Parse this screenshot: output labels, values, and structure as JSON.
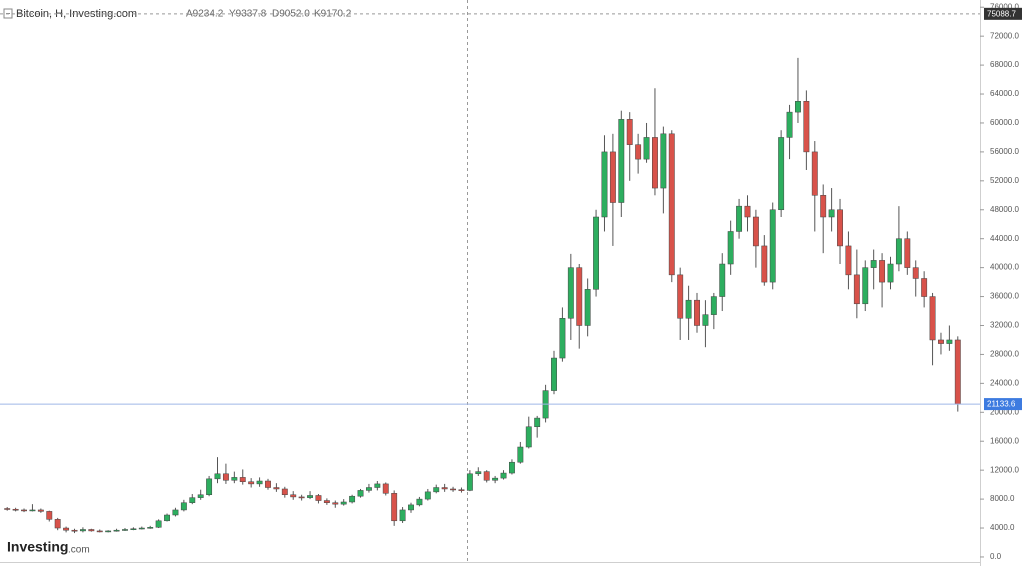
{
  "chart_data": {
    "type": "candlestick",
    "title": "Bitcoin, H, Investing.com",
    "ohlc_readout": [
      "A9234.2",
      "Y9337.8",
      "D9052.0",
      "K9170.2"
    ],
    "logo": {
      "name": "Investing",
      "suffix": ".com"
    },
    "up_color": "#2dae5f",
    "down_color": "#d8524a",
    "crosshair_price": 75088.7,
    "ylim": [
      -1250,
      77000
    ],
    "yticks": [
      {
        "value": 0,
        "label": "0.0"
      },
      {
        "value": 4000,
        "label": "4000.0"
      },
      {
        "value": 8000,
        "label": "8000.0"
      },
      {
        "value": 12000,
        "label": "12000.0"
      },
      {
        "value": 16000,
        "label": "16000.0"
      },
      {
        "value": 20000,
        "label": "20000.0"
      },
      {
        "value": 24000,
        "label": "24000.0"
      },
      {
        "value": 28000,
        "label": "28000.0"
      },
      {
        "value": 32000,
        "label": "32000.0"
      },
      {
        "value": 36000,
        "label": "36000.0"
      },
      {
        "value": 40000,
        "label": "40000.0"
      },
      {
        "value": 44000,
        "label": "44000.0"
      },
      {
        "value": 48000,
        "label": "48000.0"
      },
      {
        "value": 52000,
        "label": "52000.0"
      },
      {
        "value": 56000,
        "label": "56000.0"
      },
      {
        "value": 60000,
        "label": "60000.0"
      },
      {
        "value": 64000,
        "label": "64000.0"
      },
      {
        "value": 68000,
        "label": "68000.0"
      },
      {
        "value": 72000,
        "label": "72000.0"
      },
      {
        "value": 76000,
        "label": "76000.0"
      }
    ],
    "open": [
      6700,
      6600,
      6500,
      6400,
      6500,
      6300,
      5200,
      4000,
      3700,
      3600,
      3800,
      3600,
      3500,
      3600,
      3700,
      3800,
      3900,
      4000,
      4100,
      5000,
      5800,
      6500,
      7500,
      8200,
      8600,
      10800,
      11500,
      10600,
      11000,
      10400,
      10100,
      10500,
      9600,
      9400,
      8600,
      8300,
      8200,
      8500,
      7800,
      7500,
      7300,
      7600,
      8400,
      9200,
      9600,
      10100,
      8800,
      5000,
      6500,
      7200,
      8000,
      9000,
      9600,
      9400,
      9300,
      9200,
      11500,
      11800,
      10600,
      10900,
      11600,
      13100,
      15200,
      18000,
      19200,
      23000,
      27500,
      33000,
      40000,
      32000,
      37000,
      47000,
      56000,
      49000,
      60500,
      57000,
      55000,
      58000,
      51000,
      58500,
      39000,
      33000,
      35500,
      32000,
      33500,
      36000,
      40500,
      45000,
      48500,
      47000,
      43000,
      38000,
      48000,
      58000,
      61500,
      63000,
      56000,
      50000,
      47000,
      48000,
      43000,
      39000,
      35000,
      40000,
      41000,
      38000,
      40500,
      44000,
      40000,
      38500,
      36000,
      30000,
      29500,
      30000
    ],
    "high": [
      6900,
      6800,
      6700,
      7300,
      6700,
      6400,
      5400,
      4200,
      3900,
      4100,
      3900,
      3800,
      3700,
      3900,
      4000,
      4100,
      4200,
      4300,
      5200,
      6000,
      6800,
      7900,
      8700,
      9300,
      11200,
      13800,
      12900,
      11800,
      12100,
      10900,
      11000,
      10800,
      10200,
      9700,
      9100,
      8600,
      9100,
      8700,
      8100,
      7800,
      8000,
      8600,
      9400,
      10100,
      10500,
      10300,
      9200,
      6900,
      7500,
      8300,
      9400,
      10000,
      10100,
      9700,
      9600,
      12000,
      12400,
      12000,
      11200,
      12000,
      13500,
      15900,
      19400,
      19500,
      23800,
      28500,
      34500,
      41900,
      40500,
      38500,
      48000,
      58300,
      58500,
      61700,
      61500,
      58500,
      60000,
      64800,
      59500,
      59000,
      40000,
      37500,
      36500,
      35500,
      36500,
      42000,
      46500,
      49500,
      50000,
      48000,
      44500,
      49000,
      59000,
      62500,
      69000,
      64500,
      57500,
      51500,
      51000,
      49500,
      45000,
      42500,
      41000,
      42500,
      42000,
      41500,
      48500,
      45000,
      41000,
      39500,
      36500,
      31000,
      32000,
      30500
    ],
    "low": [
      6400,
      6300,
      6200,
      6300,
      6100,
      4900,
      3700,
      3400,
      3300,
      3400,
      3500,
      3400,
      3400,
      3500,
      3600,
      3700,
      3800,
      3900,
      4000,
      4900,
      5600,
      6300,
      7300,
      7900,
      8400,
      10200,
      10100,
      10200,
      10000,
      9600,
      9700,
      9300,
      9000,
      8200,
      7900,
      7800,
      8000,
      7400,
      7200,
      6800,
      7100,
      7400,
      8200,
      8900,
      9200,
      8500,
      4300,
      4700,
      6100,
      7000,
      7800,
      8800,
      9000,
      9000,
      8900,
      9100,
      11200,
      10300,
      10200,
      10700,
      11400,
      12900,
      15000,
      16500,
      18600,
      22500,
      27000,
      30000,
      28800,
      30500,
      36000,
      45000,
      43000,
      47000,
      52000,
      53000,
      54500,
      50000,
      47500,
      38000,
      30000,
      30000,
      31000,
      29000,
      31500,
      34000,
      39000,
      44000,
      45000,
      40000,
      37500,
      37000,
      47000,
      55000,
      60000,
      53500,
      45000,
      42000,
      45000,
      40500,
      37000,
      33000,
      34000,
      37000,
      34500,
      37000,
      39500,
      39000,
      36000,
      34500,
      26500,
      28000,
      28500,
      20100
    ],
    "close": [
      6600,
      6500,
      6400,
      6500,
      6300,
      5200,
      4000,
      3700,
      3600,
      3800,
      3600,
      3500,
      3600,
      3700,
      3800,
      3900,
      4000,
      4100,
      5000,
      5800,
      6500,
      7500,
      8200,
      8600,
      10800,
      11500,
      10600,
      11000,
      10400,
      10100,
      10500,
      9600,
      9400,
      8600,
      8300,
      8200,
      8500,
      7800,
      7500,
      7300,
      7600,
      8400,
      9200,
      9600,
      10100,
      8800,
      5000,
      6500,
      7200,
      8000,
      9000,
      9600,
      9400,
      9300,
      9200,
      11500,
      11800,
      10600,
      10900,
      11600,
      13100,
      15200,
      18000,
      19200,
      23000,
      27500,
      33000,
      40000,
      32000,
      37000,
      47000,
      56000,
      49000,
      60500,
      57000,
      55000,
      58000,
      51000,
      58500,
      39000,
      33000,
      35500,
      32000,
      33500,
      36000,
      40500,
      45000,
      48500,
      47000,
      43000,
      38000,
      48000,
      58000,
      61500,
      63000,
      56000,
      50000,
      47000,
      48000,
      43000,
      39000,
      35000,
      40000,
      41000,
      38000,
      40500,
      44000,
      40000,
      38500,
      36000,
      30000,
      29500,
      30000,
      21133.6
    ]
  }
}
